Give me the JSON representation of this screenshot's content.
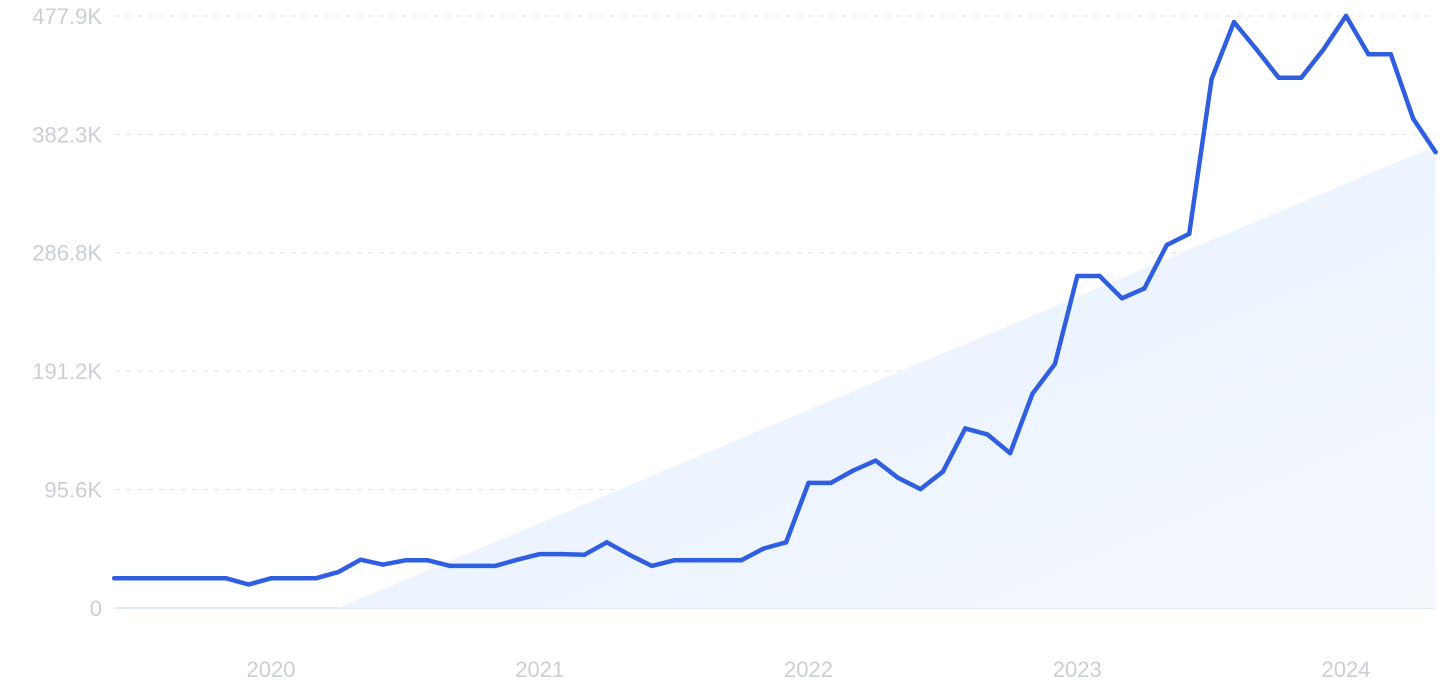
{
  "chart_data": {
    "type": "line",
    "title": "",
    "xlabel": "",
    "ylabel": "",
    "ylim": [
      0,
      477900
    ],
    "xlim": [
      "2019-06",
      "2024-05"
    ],
    "grid": true,
    "ytick_labels": [
      "0",
      "95.6K",
      "191.2K",
      "286.8K",
      "382.3K",
      "477.9K"
    ],
    "ytick_values": [
      0,
      95600,
      191200,
      286800,
      382300,
      477900
    ],
    "xtick_labels": [
      "2020",
      "2021",
      "2022",
      "2023",
      "2024"
    ],
    "xtick_values": [
      "2020-01",
      "2021-01",
      "2022-01",
      "2023-01",
      "2024-01"
    ],
    "series": [
      {
        "color": "#2f5ee0",
        "x": [
          "2019-06",
          "2019-07",
          "2019-08",
          "2019-09",
          "2019-10",
          "2019-11",
          "2019-12",
          "2020-01",
          "2020-02",
          "2020-03",
          "2020-04",
          "2020-05",
          "2020-06",
          "2020-07",
          "2020-08",
          "2020-09",
          "2020-10",
          "2020-11",
          "2020-12",
          "2021-01",
          "2021-02",
          "2021-03",
          "2021-04",
          "2021-05",
          "2021-06",
          "2021-07",
          "2021-08",
          "2021-09",
          "2021-10",
          "2021-11",
          "2021-12",
          "2022-01",
          "2022-02",
          "2022-03",
          "2022-04",
          "2022-05",
          "2022-06",
          "2022-07",
          "2022-08",
          "2022-09",
          "2022-10",
          "2022-11",
          "2022-12",
          "2023-01",
          "2023-02",
          "2023-03",
          "2023-04",
          "2023-05",
          "2023-06",
          "2023-07",
          "2023-08",
          "2023-09",
          "2023-10",
          "2023-11",
          "2023-12",
          "2024-01",
          "2024-02",
          "2024-03",
          "2024-04",
          "2024-05"
        ],
        "values": [
          24000,
          24000,
          24000,
          24000,
          24000,
          24000,
          19000,
          24000,
          24000,
          24000,
          29000,
          39000,
          35000,
          38500,
          38500,
          34000,
          34000,
          34000,
          39000,
          43500,
          43500,
          43000,
          53000,
          43000,
          34000,
          38500,
          38500,
          38500,
          38500,
          48000,
          53000,
          101000,
          101000,
          111000,
          119000,
          105000,
          96000,
          110000,
          145000,
          140000,
          125000,
          173000,
          197000,
          268000,
          268000,
          250000,
          258000,
          293000,
          302000,
          427000,
          473000,
          451000,
          428000,
          428000,
          451000,
          478000,
          447000,
          447000,
          395000,
          368000
        ]
      }
    ],
    "trend_area": {
      "color": "#eaf2fd",
      "x": [
        "2020-04",
        "2024-05"
      ],
      "values": [
        0,
        373000
      ]
    }
  }
}
